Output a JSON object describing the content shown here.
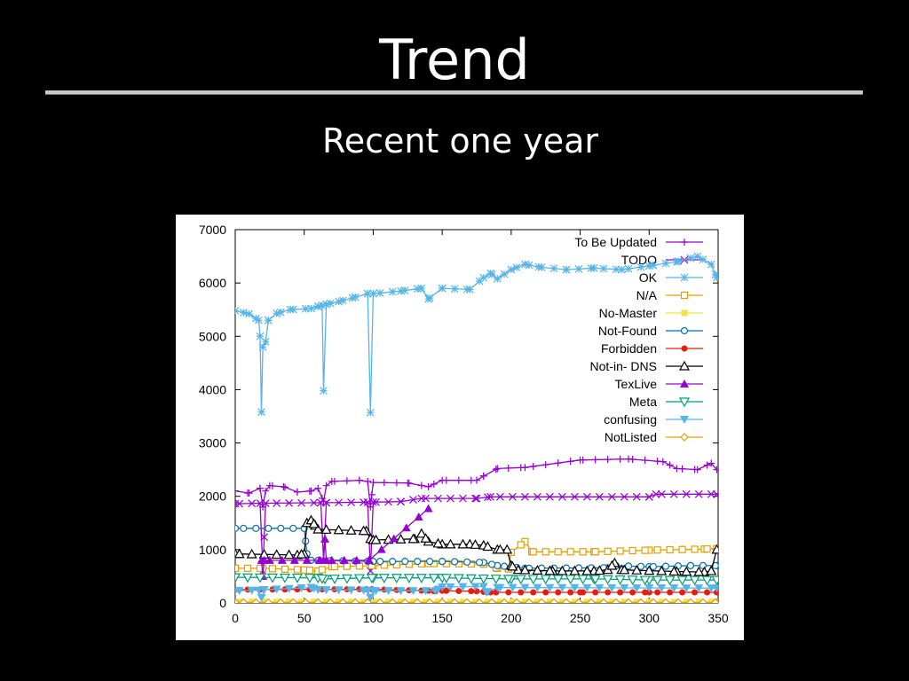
{
  "slide": {
    "title": "Trend",
    "subtitle": "Recent one year"
  },
  "chart_data": {
    "type": "line",
    "title": "",
    "xlabel": "",
    "ylabel": "",
    "xlim": [
      0,
      350
    ],
    "ylim": [
      0,
      7000
    ],
    "x_ticks": [
      "0",
      "50",
      "100",
      "150",
      "200",
      "250",
      "300",
      "350"
    ],
    "y_ticks": [
      "0",
      "1000",
      "2000",
      "3000",
      "4000",
      "5000",
      "6000",
      "7000"
    ],
    "legend_position": "top-right",
    "series": [
      {
        "name": "To Be Updated",
        "color": "#9400d3",
        "marker": "plus",
        "points": [
          [
            0,
            2100
          ],
          [
            10,
            2060
          ],
          [
            18,
            2150
          ],
          [
            20,
            1800
          ],
          [
            22,
            2100
          ],
          [
            25,
            2200
          ],
          [
            35,
            2180
          ],
          [
            45,
            2080
          ],
          [
            55,
            2100
          ],
          [
            60,
            2150
          ],
          [
            64,
            1900
          ],
          [
            66,
            2200
          ],
          [
            70,
            2280
          ],
          [
            90,
            2300
          ],
          [
            96,
            2280
          ],
          [
            98,
            1800
          ],
          [
            100,
            2260
          ],
          [
            125,
            2250
          ],
          [
            140,
            2180
          ],
          [
            150,
            2300
          ],
          [
            175,
            2300
          ],
          [
            180,
            2380
          ],
          [
            190,
            2520
          ],
          [
            210,
            2540
          ],
          [
            250,
            2680
          ],
          [
            285,
            2700
          ],
          [
            310,
            2650
          ],
          [
            320,
            2520
          ],
          [
            335,
            2500
          ],
          [
            345,
            2620
          ],
          [
            349,
            2500
          ]
        ]
      },
      {
        "name": "TODO",
        "color": "#9400d3",
        "marker": "cross",
        "points": [
          [
            0,
            1860
          ],
          [
            18,
            1870
          ],
          [
            20,
            600
          ],
          [
            22,
            1870
          ],
          [
            62,
            1880
          ],
          [
            64,
            800
          ],
          [
            66,
            1880
          ],
          [
            96,
            1890
          ],
          [
            98,
            600
          ],
          [
            100,
            1890
          ],
          [
            120,
            1900
          ],
          [
            135,
            1960
          ],
          [
            175,
            1960
          ],
          [
            185,
            1990
          ],
          [
            300,
            1990
          ],
          [
            305,
            2040
          ],
          [
            349,
            2040
          ]
        ]
      },
      {
        "name": "OK",
        "color": "#56b4e9",
        "marker": "star",
        "points": [
          [
            0,
            5480
          ],
          [
            10,
            5420
          ],
          [
            17,
            5300
          ],
          [
            18,
            5000
          ],
          [
            19,
            3580
          ],
          [
            20,
            4800
          ],
          [
            22,
            4900
          ],
          [
            24,
            5300
          ],
          [
            30,
            5430
          ],
          [
            40,
            5500
          ],
          [
            55,
            5520
          ],
          [
            60,
            5560
          ],
          [
            63,
            5580
          ],
          [
            64,
            3980
          ],
          [
            66,
            5600
          ],
          [
            75,
            5650
          ],
          [
            85,
            5720
          ],
          [
            96,
            5800
          ],
          [
            98,
            3570
          ],
          [
            100,
            5800
          ],
          [
            120,
            5850
          ],
          [
            135,
            5900
          ],
          [
            140,
            5700
          ],
          [
            150,
            5900
          ],
          [
            170,
            5880
          ],
          [
            180,
            6100
          ],
          [
            185,
            6180
          ],
          [
            190,
            6080
          ],
          [
            200,
            6250
          ],
          [
            210,
            6350
          ],
          [
            220,
            6300
          ],
          [
            240,
            6250
          ],
          [
            260,
            6280
          ],
          [
            280,
            6250
          ],
          [
            300,
            6320
          ],
          [
            320,
            6400
          ],
          [
            335,
            6500
          ],
          [
            345,
            6350
          ],
          [
            349,
            6100
          ]
        ]
      },
      {
        "name": "N/A",
        "color": "#e69f00",
        "marker": "square",
        "points": [
          [
            0,
            650
          ],
          [
            20,
            650
          ],
          [
            50,
            620
          ],
          [
            60,
            600
          ],
          [
            70,
            680
          ],
          [
            100,
            700
          ],
          [
            140,
            740
          ],
          [
            180,
            730
          ],
          [
            190,
            650
          ],
          [
            198,
            640
          ],
          [
            200,
            950
          ],
          [
            210,
            1150
          ],
          [
            215,
            960
          ],
          [
            260,
            960
          ],
          [
            300,
            990
          ],
          [
            340,
            1010
          ],
          [
            349,
            1020
          ]
        ]
      },
      {
        "name": "No-Master",
        "color": "#f0e442",
        "marker": "filled-square",
        "points": [
          [
            0,
            20
          ],
          [
            349,
            20
          ]
        ]
      },
      {
        "name": "Not-Found",
        "color": "#0072b2",
        "marker": "circle",
        "points": [
          [
            0,
            1400
          ],
          [
            50,
            1400
          ],
          [
            52,
            920
          ],
          [
            55,
            800
          ],
          [
            100,
            780
          ],
          [
            150,
            780
          ],
          [
            180,
            760
          ],
          [
            190,
            700
          ],
          [
            210,
            650
          ],
          [
            270,
            660
          ],
          [
            275,
            700
          ],
          [
            300,
            680
          ],
          [
            330,
            700
          ],
          [
            349,
            700
          ]
        ]
      },
      {
        "name": "Forbidden",
        "color": "#e51e10",
        "marker": "filled-circle",
        "points": [
          [
            0,
            250
          ],
          [
            95,
            260
          ],
          [
            140,
            230
          ],
          [
            145,
            220
          ],
          [
            150,
            230
          ],
          [
            175,
            220
          ],
          [
            185,
            200
          ],
          [
            250,
            200
          ],
          [
            300,
            200
          ],
          [
            349,
            200
          ]
        ]
      },
      {
        "name": "Not-in- DNS",
        "color": "#000000",
        "marker": "triangle",
        "points": [
          [
            0,
            920
          ],
          [
            45,
            900
          ],
          [
            50,
            920
          ],
          [
            52,
            1500
          ],
          [
            55,
            1550
          ],
          [
            58,
            1450
          ],
          [
            60,
            1380
          ],
          [
            95,
            1350
          ],
          [
            98,
            1200
          ],
          [
            100,
            1180
          ],
          [
            130,
            1200
          ],
          [
            135,
            1300
          ],
          [
            140,
            1150
          ],
          [
            150,
            1100
          ],
          [
            170,
            1100
          ],
          [
            180,
            1080
          ],
          [
            190,
            1000
          ],
          [
            197,
            1000
          ],
          [
            200,
            700
          ],
          [
            205,
            620
          ],
          [
            230,
            600
          ],
          [
            260,
            600
          ],
          [
            270,
            620
          ],
          [
            275,
            750
          ],
          [
            280,
            620
          ],
          [
            320,
            590
          ],
          [
            340,
            580
          ],
          [
            345,
            600
          ],
          [
            349,
            1000
          ]
        ]
      },
      {
        "name": "TexLive",
        "color": "#9400d3",
        "marker": "filled-triangle",
        "points": [
          [
            19,
            800
          ],
          [
            20,
            500
          ],
          [
            21,
            800
          ],
          [
            64,
            800
          ],
          [
            65,
            1200
          ],
          [
            66,
            800
          ],
          [
            97,
            800
          ],
          [
            140,
            1770
          ]
        ]
      },
      {
        "name": "Meta",
        "color": "#009e73",
        "marker": "triangle-down",
        "points": [
          [
            0,
            480
          ],
          [
            60,
            470
          ],
          [
            65,
            450
          ],
          [
            100,
            470
          ],
          [
            150,
            470
          ],
          [
            200,
            450
          ],
          [
            260,
            450
          ],
          [
            300,
            430
          ],
          [
            349,
            430
          ]
        ]
      },
      {
        "name": "confusing",
        "color": "#56b4e9",
        "marker": "filled-triangle-down",
        "points": [
          [
            0,
            230
          ],
          [
            17,
            240
          ],
          [
            19,
            100
          ],
          [
            21,
            250
          ],
          [
            55,
            290
          ],
          [
            60,
            250
          ],
          [
            96,
            240
          ],
          [
            98,
            100
          ],
          [
            100,
            230
          ],
          [
            145,
            230
          ],
          [
            150,
            300
          ],
          [
            180,
            310
          ],
          [
            182,
            200
          ],
          [
            190,
            290
          ],
          [
            349,
            280
          ]
        ]
      },
      {
        "name": "NotListed",
        "color": "#e69f00",
        "marker": "diamond",
        "points": [
          [
            0,
            10
          ],
          [
            349,
            10
          ]
        ]
      }
    ]
  }
}
